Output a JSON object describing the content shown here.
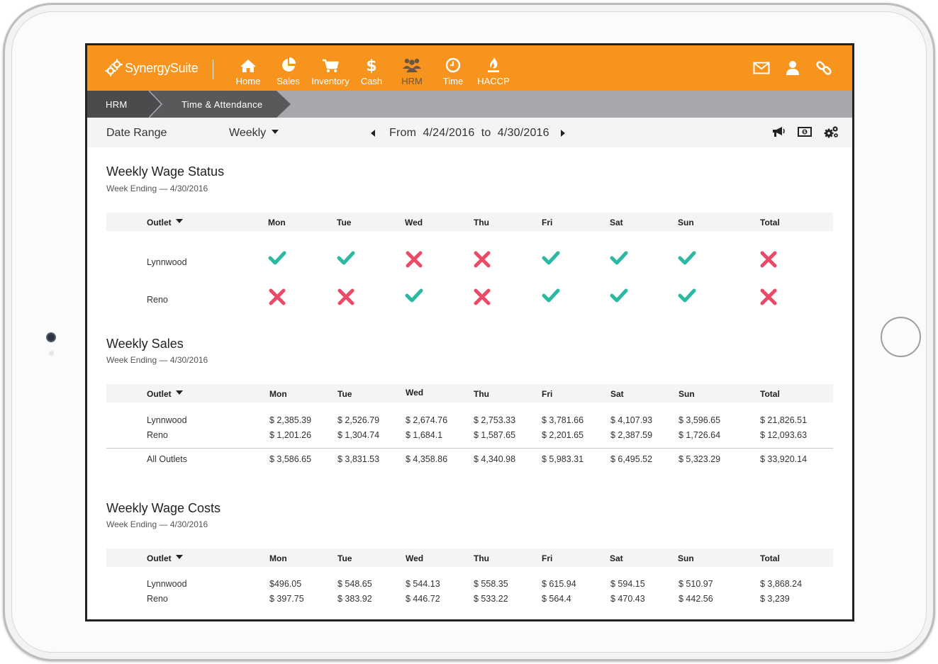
{
  "app": {
    "logo_text": "SynergySuite",
    "accent_color": "#f7941e",
    "nav": [
      {
        "label": "Home",
        "icon": "home-icon"
      },
      {
        "label": "Sales",
        "icon": "pie-chart-icon"
      },
      {
        "label": "Inventory",
        "icon": "cart-icon"
      },
      {
        "label": "Cash",
        "icon": "dollar-icon"
      },
      {
        "label": "HRM",
        "icon": "people-icon",
        "active": true
      },
      {
        "label": "Time",
        "icon": "clock-icon"
      },
      {
        "label": "HACCP",
        "icon": "flame-icon"
      }
    ],
    "nav_right_icons": [
      "mail-icon",
      "user-icon",
      "link-icon"
    ]
  },
  "breadcrumb": [
    "HRM",
    "Time & Attendance"
  ],
  "date_bar": {
    "label": "Date Range",
    "period": "Weekly",
    "from_label": "From",
    "from": "4/24/2016",
    "to_label": "to",
    "to": "4/30/2016",
    "tool_icons": [
      "megaphone-icon",
      "cash-icon",
      "gears-icon"
    ]
  },
  "columns": {
    "outlet": "Outlet",
    "days": [
      "Mon",
      "Tue",
      "Wed",
      "Thu",
      "Fri",
      "Sat",
      "Sun"
    ],
    "total": "Total"
  },
  "wage_status": {
    "title": "Weekly Wage Status",
    "subtitle": "Week Ending — 4/30/2016",
    "pass_color": "#2bb9a4",
    "fail_color": "#ea4a66",
    "rows": [
      {
        "outlet": "Lynnwood",
        "status": [
          true,
          true,
          false,
          false,
          true,
          true,
          true,
          false
        ]
      },
      {
        "outlet": "Reno",
        "status": [
          false,
          false,
          true,
          false,
          true,
          true,
          true,
          false
        ]
      }
    ]
  },
  "sales": {
    "title": "Weekly Sales",
    "subtitle": "Week Ending — 4/30/2016",
    "rows": [
      {
        "outlet": "Lynnwood",
        "values": [
          "$ 2,385.39",
          "$ 2,526.79",
          "$ 2,674.76",
          "$ 2,753.33",
          "$ 3,781.66",
          "$ 4,107.93",
          "$ 3,596.65",
          "$ 21,826.51"
        ]
      },
      {
        "outlet": "Reno",
        "values": [
          "$ 1,201.26",
          "$ 1,304.74",
          "$ 1,684.1",
          "$ 1,587.65",
          "$ 2,201.65",
          "$ 2,387.59",
          "$ 1,726.64",
          "$ 12,093.63"
        ]
      }
    ],
    "total_row": {
      "outlet": "All Outlets",
      "values": [
        "$ 3,586.65",
        "$ 3,831.53",
        "$ 4,358.86",
        "$ 4,340.98",
        "$ 5,983.31",
        "$ 6,495.52",
        "$ 5,323.29",
        "$ 33,920.14"
      ]
    }
  },
  "wage_costs": {
    "title": "Weekly Wage Costs",
    "subtitle": "Week Ending — 4/30/2016",
    "rows": [
      {
        "outlet": "Lynnwood",
        "values": [
          "$496.05",
          "$ 548.65",
          "$ 544.13",
          "$ 558.35",
          "$ 615.94",
          "$ 594.15",
          "$ 510.97",
          "$ 3,868.24"
        ]
      },
      {
        "outlet": "Reno",
        "values": [
          "$ 397.75",
          "$ 383.92",
          "$ 446.72",
          "$ 533.22",
          "$ 564.4",
          "$ 470.43",
          "$ 442.56",
          "$ 3,239"
        ]
      }
    ]
  }
}
